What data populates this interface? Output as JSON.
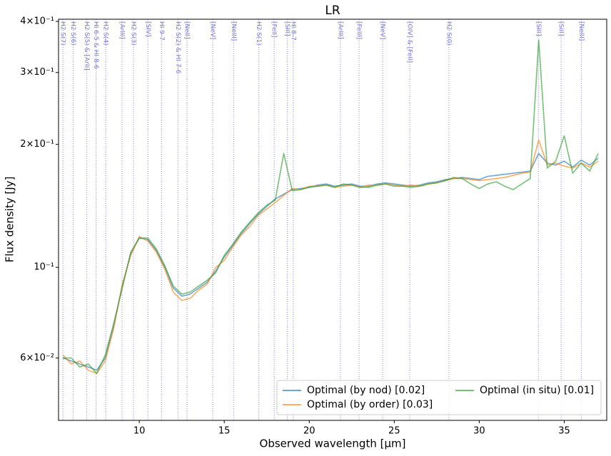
{
  "chart_data": {
    "type": "line",
    "title": "LR",
    "x_label": "Observed wavelength [μm]",
    "y_label": "Flux density [Jy]",
    "ylog": true,
    "legend": "lower right",
    "xlim": [
      5.25,
      37.5
    ],
    "ylim": [
      0.0422,
      0.405
    ],
    "xticks": [
      10,
      15,
      20,
      25,
      30,
      35
    ],
    "yticks": [
      {
        "value": 0.06,
        "label": "6×10⁻²"
      },
      {
        "value": 0.1,
        "label": "10⁻¹"
      },
      {
        "value": 0.2,
        "label": "2×10⁻¹"
      },
      {
        "value": 0.3,
        "label": "3×10⁻¹"
      },
      {
        "value": 0.4,
        "label": "4×10⁻¹"
      }
    ],
    "x": [
      5.5,
      6,
      6.5,
      7,
      7.5,
      8,
      8.5,
      9,
      9.5,
      10,
      10.5,
      11,
      11.5,
      12,
      12.5,
      13,
      13.5,
      14,
      14.5,
      15,
      15.5,
      16,
      16.5,
      17,
      17.5,
      18,
      18.5,
      19,
      19.5,
      20,
      20.5,
      21,
      21.5,
      22,
      22.5,
      23,
      23.5,
      24,
      24.5,
      25,
      25.5,
      26,
      26.5,
      27,
      27.5,
      28,
      28.5,
      29,
      29.5,
      30,
      30.5,
      31,
      31.5,
      32,
      32.5,
      33,
      33.5,
      34,
      34.5,
      35,
      35.5,
      36,
      36.5,
      37
    ],
    "series": [
      {
        "name": "Optimal (by nod) [0.02]",
        "color": "#1f77b4",
        "values": [
          0.06,
          0.059,
          0.058,
          0.057,
          0.056,
          0.06,
          0.072,
          0.09,
          0.108,
          0.118,
          0.117,
          0.11,
          0.1,
          0.089,
          0.085,
          0.086,
          0.089,
          0.092,
          0.098,
          0.106,
          0.113,
          0.121,
          0.128,
          0.135,
          0.141,
          0.147,
          0.151,
          0.155,
          0.156,
          0.157,
          0.159,
          0.16,
          0.158,
          0.159,
          0.16,
          0.158,
          0.158,
          0.16,
          0.161,
          0.16,
          0.159,
          0.158,
          0.159,
          0.161,
          0.162,
          0.164,
          0.165,
          0.166,
          0.165,
          0.164,
          0.167,
          0.168,
          0.169,
          0.17,
          0.171,
          0.172,
          0.19,
          0.18,
          0.178,
          0.182,
          0.176,
          0.183,
          0.178,
          0.185
        ]
      },
      {
        "name": "Optimal (by order) [0.03]",
        "color": "#ff7f0e",
        "values": [
          0.061,
          0.058,
          0.059,
          0.056,
          0.055,
          0.059,
          0.071,
          0.091,
          0.107,
          0.119,
          0.116,
          0.109,
          0.099,
          0.087,
          0.083,
          0.084,
          0.088,
          0.091,
          0.1,
          0.104,
          0.112,
          0.12,
          0.126,
          0.134,
          0.139,
          0.144,
          0.15,
          0.156,
          0.155,
          0.158,
          0.158,
          0.159,
          0.157,
          0.158,
          0.159,
          0.157,
          0.159,
          0.159,
          0.16,
          0.159,
          0.158,
          0.159,
          0.158,
          0.16,
          0.161,
          0.163,
          0.165,
          0.165,
          0.164,
          0.163,
          0.164,
          0.165,
          0.166,
          0.168,
          0.17,
          0.171,
          0.205,
          0.178,
          0.18,
          0.177,
          0.175,
          0.18,
          0.176,
          0.182
        ]
      },
      {
        "name": "Optimal (in situ) [0.01]",
        "color": "#2ca02c",
        "values": [
          0.06,
          0.06,
          0.057,
          0.058,
          0.055,
          0.061,
          0.073,
          0.089,
          0.109,
          0.118,
          0.118,
          0.111,
          0.101,
          0.09,
          0.086,
          0.087,
          0.09,
          0.093,
          0.097,
          0.107,
          0.114,
          0.122,
          0.129,
          0.136,
          0.142,
          0.146,
          0.19,
          0.154,
          0.155,
          0.157,
          0.158,
          0.159,
          0.157,
          0.16,
          0.159,
          0.157,
          0.157,
          0.159,
          0.16,
          0.158,
          0.158,
          0.157,
          0.158,
          0.16,
          0.161,
          0.163,
          0.166,
          0.165,
          0.16,
          0.156,
          0.16,
          0.162,
          0.158,
          0.155,
          0.16,
          0.165,
          0.36,
          0.175,
          0.182,
          0.21,
          0.17,
          0.18,
          0.172,
          0.19
        ]
      }
    ],
    "lines": [
      {
        "x": 5.51,
        "label": "H2 S(7)"
      },
      {
        "x": 6.11,
        "label": "H2 S(6)"
      },
      {
        "x": 6.91,
        "label": "H2 S(5) & [ArII]"
      },
      {
        "x": 7.46,
        "label": "HI 6-5 & HI 8-6"
      },
      {
        "x": 8.03,
        "label": "H2 S(4)"
      },
      {
        "x": 8.99,
        "label": "[ArIII]"
      },
      {
        "x": 9.66,
        "label": "H2 S(3)"
      },
      {
        "x": 10.51,
        "label": "[SIV]"
      },
      {
        "x": 11.31,
        "label": "HI 9-7"
      },
      {
        "x": 12.28,
        "label": "H2 S(2) & HI 7-6"
      },
      {
        "x": 12.81,
        "label": "[NeII]"
      },
      {
        "x": 14.32,
        "label": "[NeV]"
      },
      {
        "x": 15.56,
        "label": "[NeIII]"
      },
      {
        "x": 17.03,
        "label": "H2 S(1)"
      },
      {
        "x": 17.94,
        "label": "[FeII]"
      },
      {
        "x": 18.71,
        "label": "[SIII]"
      },
      {
        "x": 19.06,
        "label": "HI 8-7"
      },
      {
        "x": 21.83,
        "label": "[ArIII]"
      },
      {
        "x": 22.93,
        "label": "[FeIII]"
      },
      {
        "x": 24.32,
        "label": "[NeV]"
      },
      {
        "x": 25.91,
        "label": "[OIV] & [FeII]"
      },
      {
        "x": 28.22,
        "label": "H2 S(0)"
      },
      {
        "x": 33.48,
        "label": "[SIII]"
      },
      {
        "x": 34.82,
        "label": "[SiII]"
      },
      {
        "x": 36.01,
        "label": "[NeIII]"
      }
    ]
  }
}
